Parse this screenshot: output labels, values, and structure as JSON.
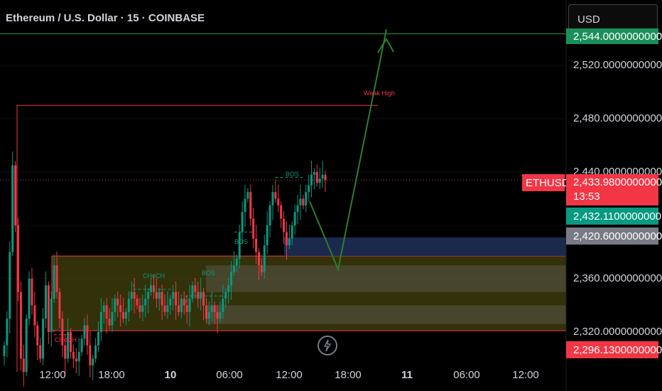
{
  "header": {
    "title": "Ethereum / U.S. Dollar · 15 · COINBASE"
  },
  "currency_button": {
    "label": "USD"
  },
  "price_axis": {
    "ticks": [
      "2,520.0000000000",
      "2,480.0000000000",
      "2,440.0000000000",
      "2,360.0000000000",
      "2,320.0000000000"
    ],
    "tags": {
      "top_line": {
        "label": "2,544.0000000000",
        "color": "#1b8f5a"
      },
      "symbol": {
        "label": "ETHUSD",
        "color": "#f23645"
      },
      "last_price": {
        "label": "2,433.9800000000",
        "color": "#f23645"
      },
      "countdown": {
        "label": "13:53",
        "color": "#f23645"
      },
      "green_level": {
        "label": "2,432.1100000000",
        "color": "#089981"
      },
      "grey_level": {
        "label": "2,420.6000000000",
        "color": "#787b86"
      },
      "red_level": {
        "label": "2,296.1300000000",
        "color": "#f23645"
      }
    }
  },
  "time_axis": {
    "ticks": [
      {
        "label": "12:00",
        "bold": false
      },
      {
        "label": "18:00",
        "bold": false
      },
      {
        "label": "10",
        "bold": true
      },
      {
        "label": "06:00",
        "bold": false
      },
      {
        "label": "12:00",
        "bold": false
      },
      {
        "label": "18:00",
        "bold": false
      },
      {
        "label": "11",
        "bold": true
      },
      {
        "label": "06:00",
        "bold": false
      },
      {
        "label": "12:00",
        "bold": false
      }
    ]
  },
  "annotations": {
    "weak_high": "Weak High",
    "bos_1": "BOS",
    "bos_2": "BOS",
    "bos_3": "BOS",
    "choch_1": "CHoCH",
    "choch_2": "CHoCH"
  },
  "colors": {
    "up": "#089981",
    "down": "#f23645",
    "zone_fill": "#5c5a12",
    "zone_border": "#f23645",
    "blue_zone": "#1e2e55",
    "arrow": "#2e7d32"
  },
  "chart_data": {
    "type": "candlestick",
    "symbol": "ETHUSD",
    "interval": "15",
    "exchange": "COINBASE",
    "y_range": [
      2290,
      2560
    ],
    "last_price": 2433.98,
    "levels": {
      "top_line": 2544.0,
      "weak_high": 2490.0,
      "green_level": 2432.11,
      "grey_level": 2420.6,
      "red_level": 2296.13
    },
    "zones": [
      {
        "name": "demand_zone",
        "top": 2377,
        "bottom": 2321
      },
      {
        "name": "blue_zone",
        "top": 2391,
        "bottom": 2377
      }
    ],
    "closes": [
      2310,
      2330,
      2380,
      2445,
      2400,
      2350,
      2300,
      2290,
      2330,
      2360,
      2340,
      2325,
      2310,
      2300,
      2330,
      2355,
      2320,
      2345,
      2370,
      2350,
      2330,
      2310,
      2300,
      2320,
      2305,
      2300,
      2298,
      2305,
      2315,
      2325,
      2310,
      2295,
      2300,
      2310,
      2320,
      2335,
      2340,
      2330,
      2325,
      2335,
      2345,
      2340,
      2335,
      2330,
      2335,
      2345,
      2350,
      2345,
      2340,
      2335,
      2340,
      2345,
      2350,
      2355,
      2350,
      2345,
      2350,
      2340,
      2335,
      2340,
      2345,
      2350,
      2340,
      2335,
      2345,
      2340,
      2335,
      2345,
      2355,
      2350,
      2345,
      2350,
      2340,
      2330,
      2335,
      2340,
      2335,
      2330,
      2335,
      2345,
      2350,
      2355,
      2365,
      2370,
      2375,
      2395,
      2410,
      2420,
      2425,
      2405,
      2390,
      2380,
      2370,
      2365,
      2385,
      2400,
      2415,
      2425,
      2420,
      2415,
      2405,
      2395,
      2385,
      2390,
      2400,
      2410,
      2415,
      2420,
      2415,
      2425,
      2430,
      2438,
      2440,
      2432,
      2435,
      2438,
      2434
    ]
  }
}
